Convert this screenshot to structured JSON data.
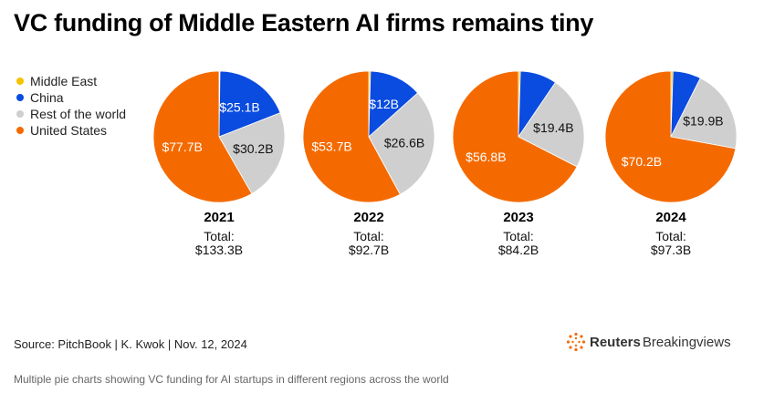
{
  "title": "VC funding of Middle Eastern AI firms remains tiny",
  "legend": [
    {
      "label": "Middle East",
      "color": "#f5c400"
    },
    {
      "label": "China",
      "color": "#0a4be0"
    },
    {
      "label": "Rest of the world",
      "color": "#cfcfcf"
    },
    {
      "label": "United States",
      "color": "#f46a00"
    }
  ],
  "chart_data": {
    "type": "pie",
    "series_order": [
      "Middle East",
      "China",
      "Rest of the world",
      "United States"
    ],
    "colors": [
      "#f5c400",
      "#0a4be0",
      "#cfcfcf",
      "#f46a00"
    ],
    "pies": [
      {
        "year": "2021",
        "total_label": "Total:",
        "total_value": "$133.3B",
        "values": [
          0.3,
          25.1,
          30.2,
          77.7
        ],
        "labels": [
          "",
          "$25.1B",
          "$30.2B",
          "$77.7B"
        ]
      },
      {
        "year": "2022",
        "total_label": "Total:",
        "total_value": "$92.7B",
        "values": [
          0.4,
          12.0,
          26.6,
          53.7
        ],
        "labels": [
          "",
          "$12B",
          "$26.6B",
          "$53.7B"
        ]
      },
      {
        "year": "2023",
        "total_label": "Total:",
        "total_value": "$84.2B",
        "values": [
          0.4,
          7.6,
          19.4,
          56.8
        ],
        "labels": [
          "",
          "",
          "$19.4B",
          "$56.8B"
        ]
      },
      {
        "year": "2024",
        "total_label": "Total:",
        "total_value": "$97.3B",
        "values": [
          0.5,
          6.7,
          19.9,
          70.2
        ],
        "labels": [
          "",
          "",
          "$19.9B",
          "$70.2B"
        ]
      }
    ],
    "legend_position": "left"
  },
  "source": "Source: PitchBook | K. Kwok | Nov. 12, 2024",
  "logo": {
    "bold": "Reuters",
    "regular": "Breakingviews"
  },
  "caption": "Multiple pie charts showing VC funding for AI startups in different regions across the world"
}
